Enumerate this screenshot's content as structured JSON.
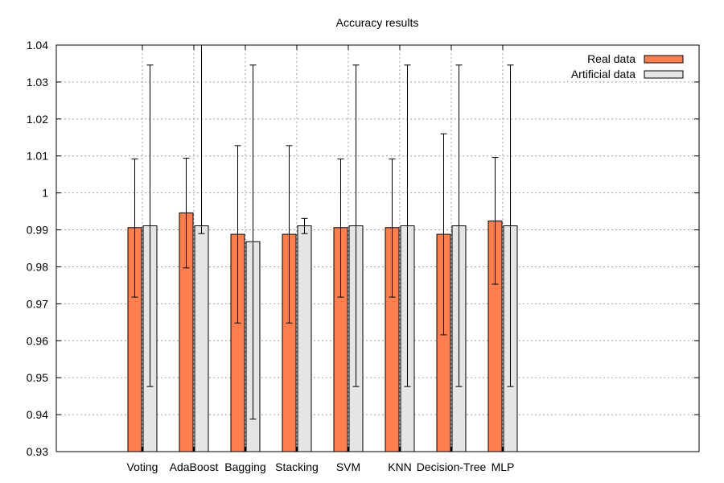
{
  "chart_data": {
    "type": "bar",
    "title": "Accuracy results",
    "xlabel": "",
    "ylabel": "",
    "ylim": [
      0.93,
      1.04
    ],
    "yticks": [
      "0.93",
      "0.94",
      "0.95",
      "0.96",
      "0.97",
      "0.98",
      "0.99",
      "1",
      "1.01",
      "1.02",
      "1.03",
      "1.04"
    ],
    "grid": true,
    "legend_position": "top-right",
    "categories": [
      "Voting",
      "AdaBoost",
      "Bagging",
      "Stacking",
      "SVM",
      "KNN",
      "Decision-Tree",
      "MLP"
    ],
    "series": [
      {
        "name": "Real data",
        "color": "#ff7f50",
        "values": [
          0.9906,
          0.9946,
          0.9888,
          0.9888,
          0.9906,
          0.9906,
          0.9888,
          0.9924
        ],
        "err_low": [
          0.9718,
          0.9797,
          0.9648,
          0.9648,
          0.9718,
          0.9718,
          0.9616,
          0.9753
        ],
        "err_high": [
          1.0092,
          1.0094,
          1.0128,
          1.0128,
          1.0092,
          1.0092,
          1.016,
          1.0096
        ]
      },
      {
        "name": "Artificial data",
        "color": "#e5e5e5",
        "values": [
          0.9911,
          0.9911,
          0.9868,
          0.9911,
          0.9911,
          0.9911,
          0.9911,
          0.9911
        ],
        "err_low": [
          0.9476,
          0.989,
          0.9388,
          0.989,
          0.9476,
          0.9476,
          0.9476,
          0.9476
        ],
        "err_high": [
          1.0346,
          1.0931,
          1.0346,
          0.9931,
          1.0346,
          1.0346,
          1.0346,
          1.0346
        ]
      }
    ]
  }
}
